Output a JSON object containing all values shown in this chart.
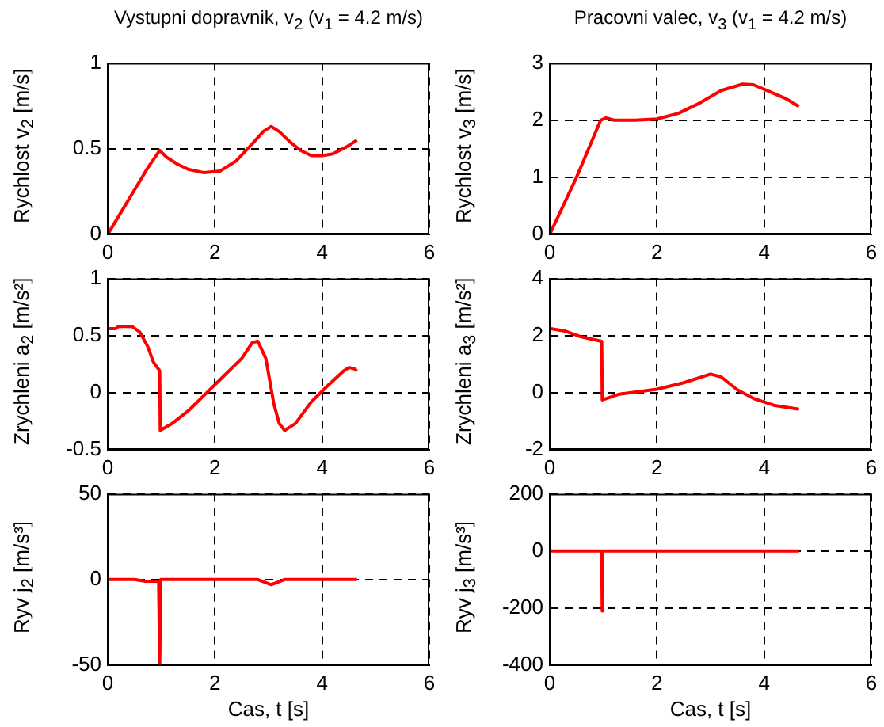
{
  "chart_data": [
    {
      "type": "line",
      "title": "Vystupni dopravnik, v$_{2}$ (v$_{1}$ = 4.2 m/s)",
      "ylabel": "Rychlost v$_{2}$ [m/s]",
      "x": [
        0,
        0.25,
        0.5,
        0.75,
        0.97,
        1.1,
        1.3,
        1.5,
        1.8,
        2.1,
        2.4,
        2.7,
        2.9,
        3.05,
        3.2,
        3.4,
        3.6,
        3.8,
        4.0,
        4.2,
        4.45,
        4.65
      ],
      "xlim": [
        0,
        6
      ],
      "xticks": [
        0,
        2,
        4,
        6
      ],
      "ylim": [
        0,
        1
      ],
      "yticks": [
        0,
        0.5,
        1
      ],
      "grid": true,
      "series": [
        {
          "color": "#ff0000",
          "values": [
            0,
            0.13,
            0.26,
            0.39,
            0.49,
            0.45,
            0.41,
            0.38,
            0.36,
            0.37,
            0.43,
            0.53,
            0.6,
            0.63,
            0.6,
            0.54,
            0.49,
            0.46,
            0.46,
            0.47,
            0.51,
            0.55
          ]
        }
      ]
    },
    {
      "type": "line",
      "title": "Pracovni valec, v$_{3}$ (v$_{1}$ = 4.2 m/s)",
      "ylabel": "Rychlost v$_{3}$ [m/s]",
      "x": [
        0,
        0.5,
        0.95,
        1.05,
        1.2,
        1.6,
        2.0,
        2.4,
        2.8,
        3.2,
        3.6,
        3.8,
        4.1,
        4.4,
        4.65
      ],
      "xlim": [
        0,
        6
      ],
      "xticks": [
        0,
        2,
        4,
        6
      ],
      "ylim": [
        0,
        3
      ],
      "yticks": [
        0,
        1,
        2,
        3
      ],
      "grid": true,
      "series": [
        {
          "color": "#ff0000",
          "values": [
            0,
            1.0,
            2.0,
            2.04,
            2.0,
            2.0,
            2.02,
            2.12,
            2.3,
            2.52,
            2.63,
            2.62,
            2.5,
            2.38,
            2.24
          ]
        }
      ]
    },
    {
      "type": "line",
      "ylabel": "Zrychleni a$_{2}$ [m/s²]",
      "x": [
        0,
        0.15,
        0.2,
        0.45,
        0.6,
        0.75,
        0.85,
        0.97,
        0.98,
        1.2,
        1.5,
        2.0,
        2.5,
        2.7,
        2.8,
        2.95,
        3.1,
        3.2,
        3.3,
        3.5,
        3.8,
        4.1,
        4.4,
        4.5,
        4.6,
        4.65
      ],
      "xlim": [
        0,
        6
      ],
      "xticks": [
        0,
        2,
        4,
        6
      ],
      "ylim": [
        -0.5,
        1
      ],
      "yticks": [
        -0.5,
        0,
        0.5,
        1
      ],
      "grid": true,
      "series": [
        {
          "color": "#ff0000",
          "values": [
            0.56,
            0.56,
            0.58,
            0.58,
            0.53,
            0.4,
            0.27,
            0.19,
            -0.33,
            -0.27,
            -0.16,
            0.07,
            0.3,
            0.44,
            0.45,
            0.3,
            -0.1,
            -0.27,
            -0.33,
            -0.27,
            -0.08,
            0.06,
            0.19,
            0.22,
            0.21,
            0.19
          ]
        }
      ]
    },
    {
      "type": "line",
      "ylabel": "Zrychleni a$_{3}$ [m/s²]",
      "x": [
        0,
        0.3,
        0.6,
        0.97,
        0.98,
        1.3,
        2.0,
        2.5,
        3.0,
        3.2,
        3.5,
        3.8,
        4.2,
        4.65
      ],
      "xlim": [
        0,
        6
      ],
      "xticks": [
        0,
        2,
        4,
        6
      ],
      "ylim": [
        -2,
        4
      ],
      "yticks": [
        -2,
        0,
        2,
        4
      ],
      "grid": true,
      "series": [
        {
          "color": "#ff0000",
          "values": [
            2.25,
            2.15,
            1.95,
            1.8,
            -0.25,
            -0.05,
            0.12,
            0.35,
            0.65,
            0.55,
            0.1,
            -0.2,
            -0.45,
            -0.58
          ]
        }
      ]
    },
    {
      "type": "line",
      "ylabel": "Ryv j$_{2}$ [m/s³]",
      "xlabel": "Cas, t [s]",
      "x": [
        0,
        0.5,
        0.7,
        0.95,
        0.97,
        0.99,
        2.8,
        3.05,
        3.3,
        4.65
      ],
      "xlim": [
        0,
        6
      ],
      "xticks": [
        0,
        2,
        4,
        6
      ],
      "ylim": [
        -50,
        50
      ],
      "yticks": [
        -50,
        0,
        50
      ],
      "grid": true,
      "series": [
        {
          "color": "#ff0000",
          "values": [
            0,
            0,
            -1,
            -1,
            -50,
            0,
            0,
            -3,
            0,
            0
          ]
        }
      ]
    },
    {
      "type": "line",
      "ylabel": "Ryv j$_{3}$ [m/s³]",
      "xlabel": "Cas, t [s]",
      "x": [
        0,
        0.97,
        0.98,
        0.99,
        4.65
      ],
      "xlim": [
        0,
        6
      ],
      "xticks": [
        0,
        2,
        4,
        6
      ],
      "ylim": [
        -400,
        200
      ],
      "yticks": [
        -400,
        -200,
        0,
        200
      ],
      "grid": true,
      "series": [
        {
          "color": "#ff0000",
          "values": [
            0,
            0,
            -210,
            0,
            0
          ]
        }
      ]
    }
  ]
}
